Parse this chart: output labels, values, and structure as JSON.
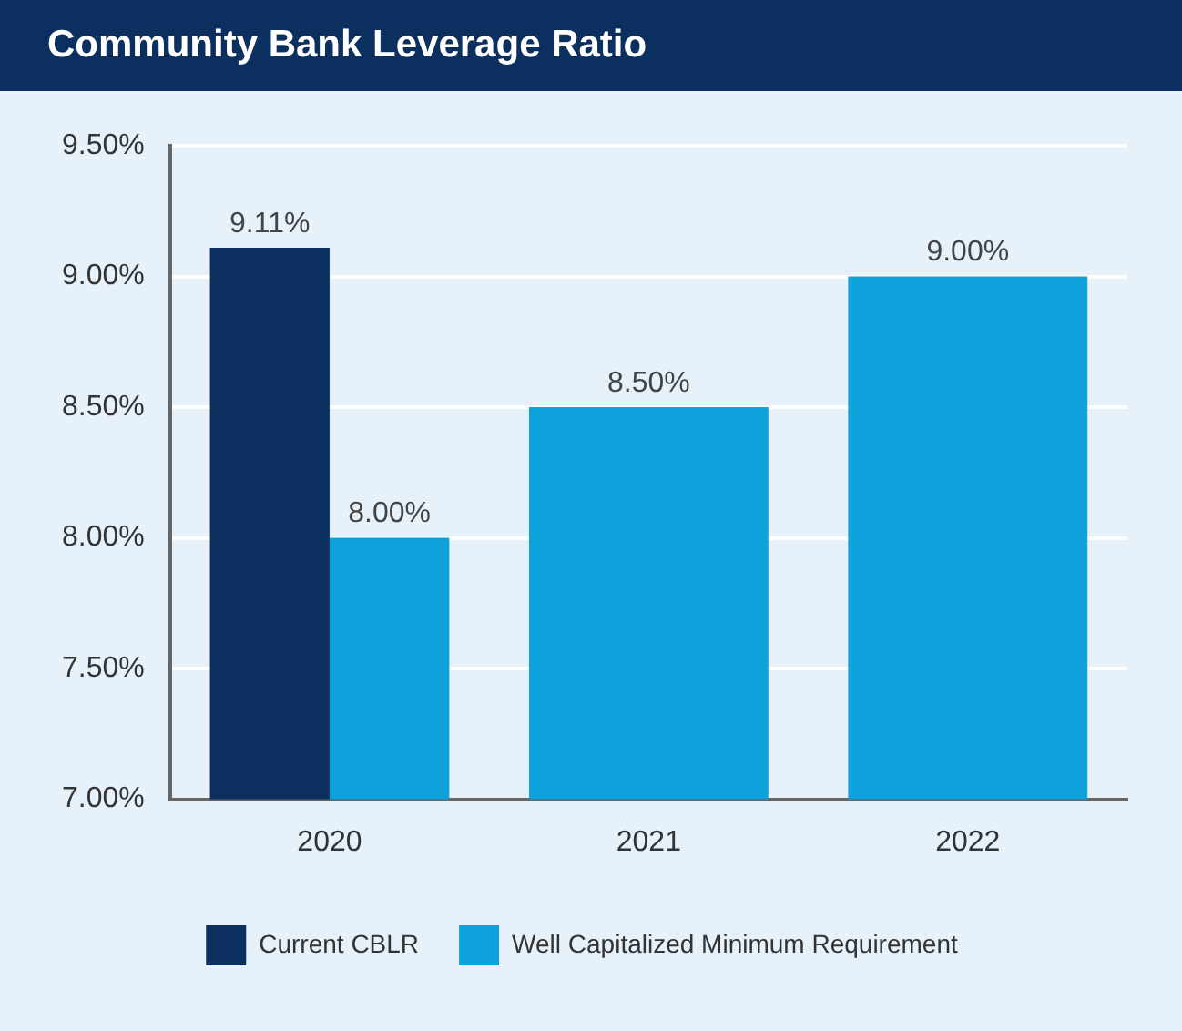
{
  "chart_data": {
    "type": "bar",
    "title": "Community Bank Leverage Ratio",
    "categories": [
      "2020",
      "2021",
      "2022"
    ],
    "series": [
      {
        "name": "Current CBLR",
        "color": "#0b2f5e",
        "values": [
          9.11,
          null,
          null
        ],
        "value_labels": [
          "9.11%",
          null,
          null
        ]
      },
      {
        "name": "Well Capitalized Minimum Requirement",
        "color": "#0ea2dd",
        "values": [
          8.0,
          8.5,
          9.0
        ],
        "value_labels": [
          "8.00%",
          "8.50%",
          "9.00%"
        ]
      }
    ],
    "ylim": [
      7,
      9.5
    ],
    "yticks": [
      {
        "value": 7,
        "label": "7.00%"
      },
      {
        "value": 7.5,
        "label": "7.50%"
      },
      {
        "value": 8,
        "label": "8.00%"
      },
      {
        "value": 8.5,
        "label": "8.50%"
      },
      {
        "value": 9,
        "label": "9.00%"
      },
      {
        "value": 9.5,
        "label": "9.50%"
      }
    ],
    "grid": "y",
    "legend": "bottom"
  }
}
